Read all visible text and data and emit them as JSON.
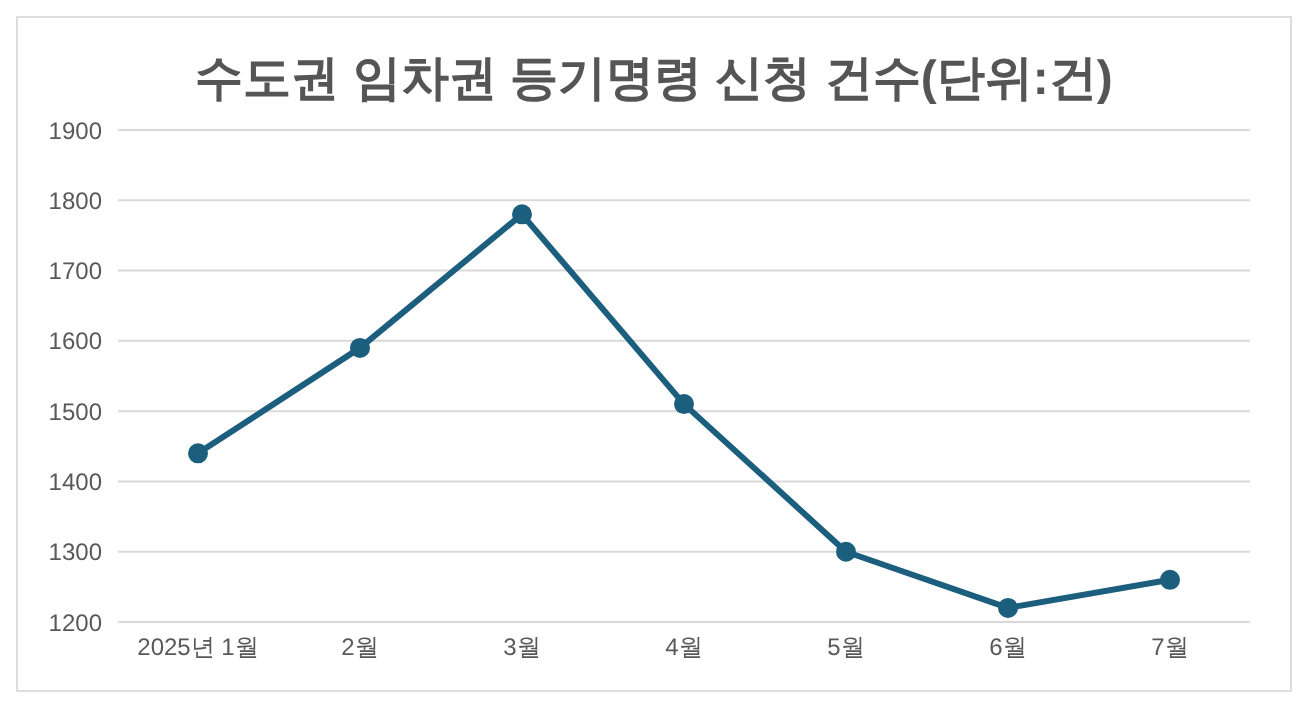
{
  "chart_data": {
    "type": "line",
    "title": "수도권 임차권 등기명령 신청 건수(단위:건)",
    "categories": [
      "2025년 1월",
      "2월",
      "3월",
      "4월",
      "5월",
      "6월",
      "7월"
    ],
    "series": [
      {
        "color": "#1b5e7e",
        "values": [
          1440,
          1590,
          1780,
          1510,
          1300,
          1220,
          1260
        ]
      }
    ],
    "ylim": [
      1200,
      1900
    ],
    "yticks": [
      1200,
      1300,
      1400,
      1500,
      1600,
      1700,
      1800,
      1900
    ],
    "grid": "y",
    "marker": "circle",
    "line_style": "solid"
  }
}
